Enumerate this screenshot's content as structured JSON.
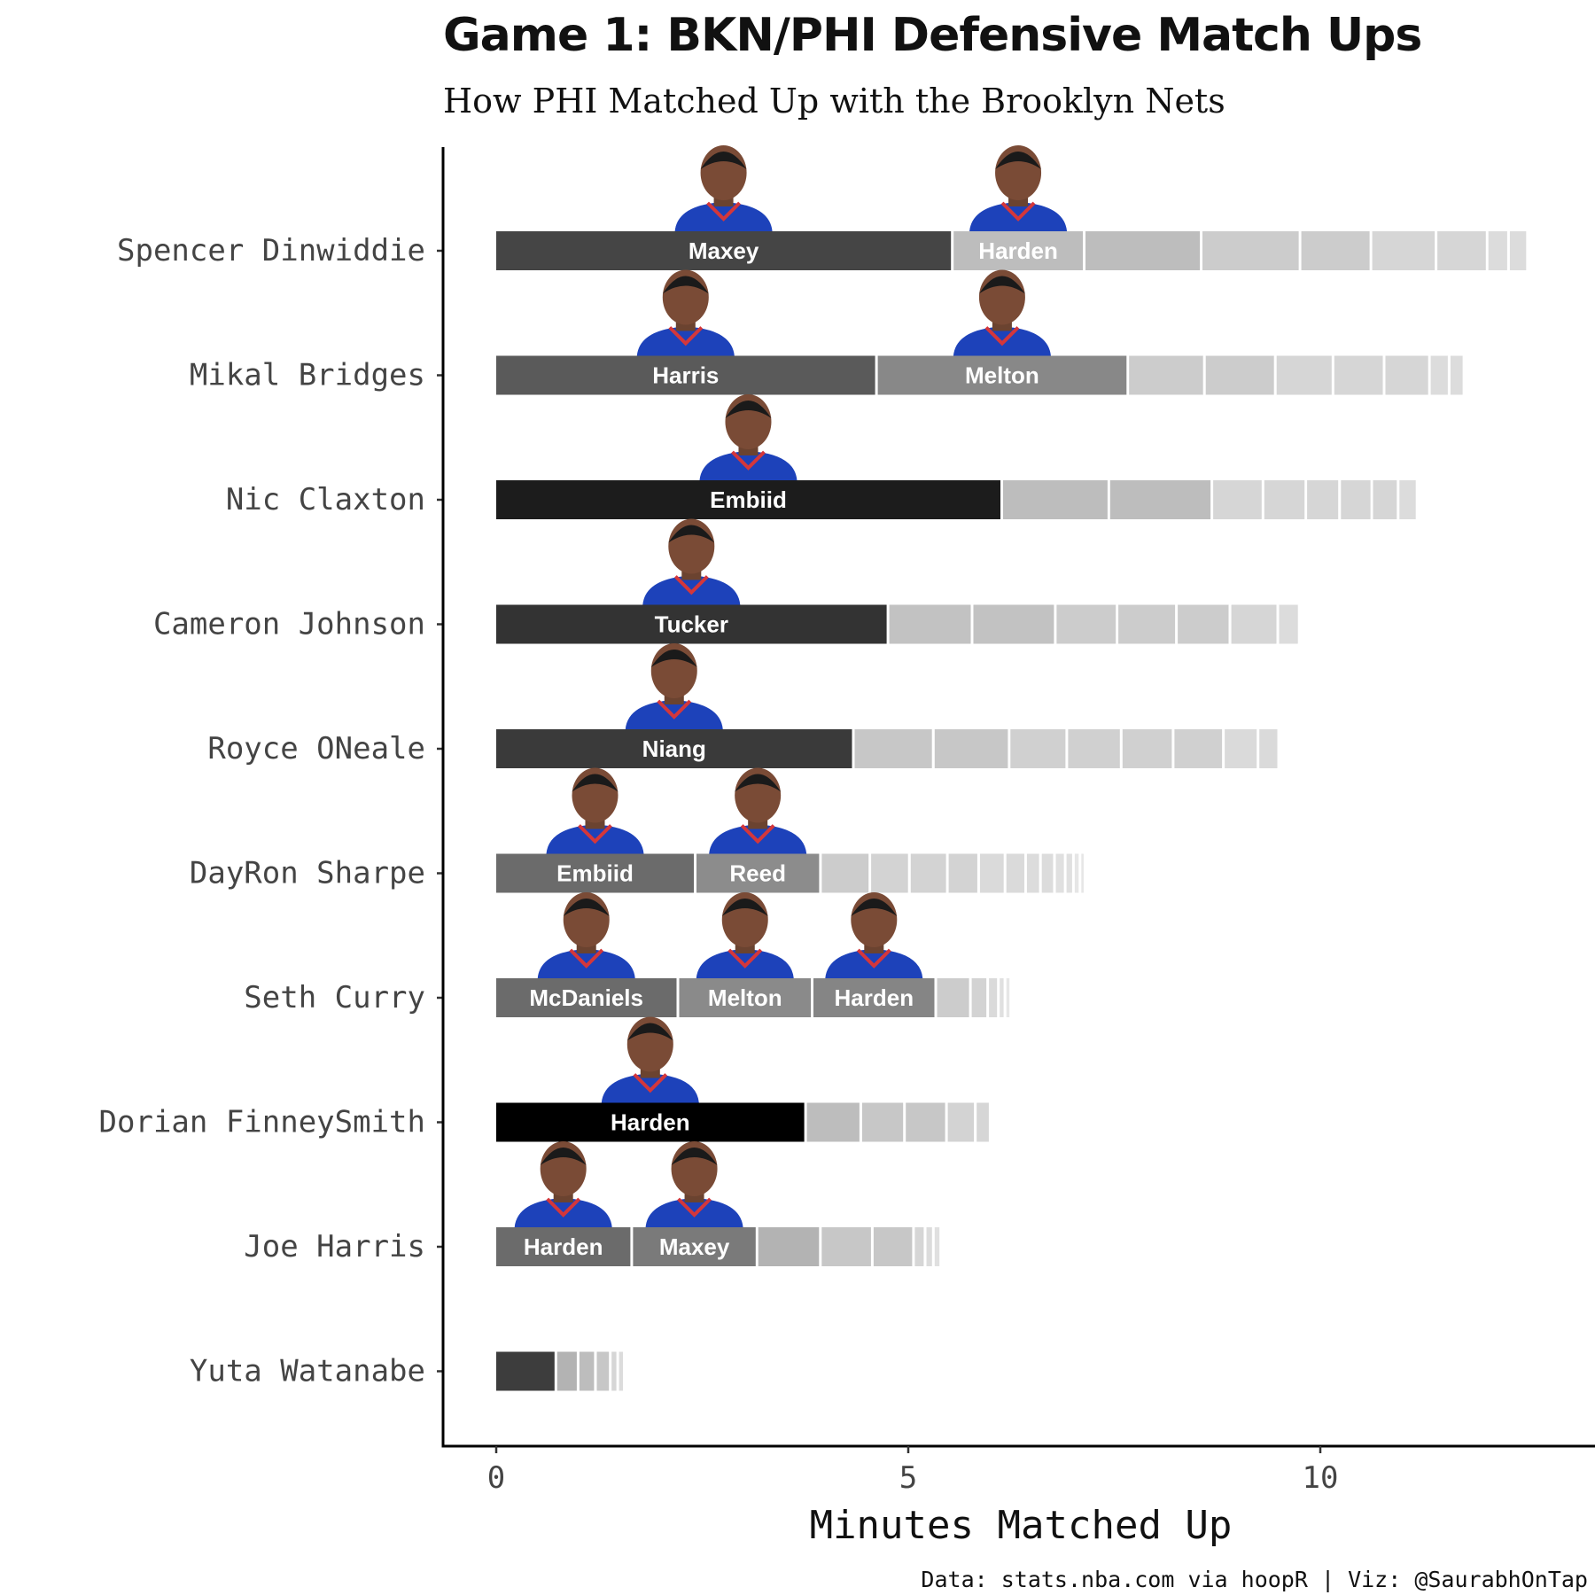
{
  "title": "Game 1: BKN/PHI Defensive Match Ups",
  "subtitle": "How PHI Matched Up with the Brooklyn Nets",
  "caption": "Data: stats.nba.com via hoopR | Viz: @SaurabhOnTap",
  "chart_data": {
    "type": "bar",
    "orientation": "horizontal",
    "stacked": true,
    "title": "Game 1: BKN/PHI Defensive Match Ups",
    "subtitle": "How PHI Matched Up with the Brooklyn Nets",
    "xlabel": "Minutes Matched Up",
    "ylabel": "",
    "xlim": [
      -0.65,
      13.3
    ],
    "xticks": [
      0,
      5,
      10
    ],
    "grid": false,
    "legend": "none",
    "categories": [
      "Spencer Dinwiddie",
      "Mikal Bridges",
      "Nic Claxton",
      "Cameron Johnson",
      "Royce ONeale",
      "DayRon Sharpe",
      "Seth Curry",
      "Dorian FinneySmith",
      "Joe Harris",
      "Yuta Watanabe"
    ],
    "rows": [
      {
        "player": "Spencer Dinwiddie",
        "segments": [
          {
            "defender": "Maxey",
            "minutes": 5.55,
            "color": "#454545",
            "label": true
          },
          {
            "defender": "Harden",
            "minutes": 1.6,
            "color": "#bdbdbd",
            "label": true
          },
          {
            "defender": "",
            "minutes": 1.42,
            "color": "#bdbdbd"
          },
          {
            "defender": "",
            "minutes": 1.2,
            "color": "#cccccc"
          },
          {
            "defender": "",
            "minutes": 0.86,
            "color": "#cccccc"
          },
          {
            "defender": "",
            "minutes": 0.79,
            "color": "#d6d6d6"
          },
          {
            "defender": "",
            "minutes": 0.62,
            "color": "#d6d6d6"
          },
          {
            "defender": "",
            "minutes": 0.26,
            "color": "#dcdcdc"
          },
          {
            "defender": "",
            "minutes": 0.23,
            "color": "#dcdcdc"
          }
        ]
      },
      {
        "player": "Mikal Bridges",
        "segments": [
          {
            "defender": "Harris",
            "minutes": 4.63,
            "color": "#5a5a5a",
            "label": true
          },
          {
            "defender": "Melton",
            "minutes": 3.05,
            "color": "#888888",
            "label": true
          },
          {
            "defender": "",
            "minutes": 0.93,
            "color": "#cccccc"
          },
          {
            "defender": "",
            "minutes": 0.86,
            "color": "#cccccc"
          },
          {
            "defender": "",
            "minutes": 0.7,
            "color": "#d6d6d6"
          },
          {
            "defender": "",
            "minutes": 0.62,
            "color": "#d6d6d6"
          },
          {
            "defender": "",
            "minutes": 0.55,
            "color": "#d6d6d6"
          },
          {
            "defender": "",
            "minutes": 0.24,
            "color": "#dcdcdc"
          },
          {
            "defender": "",
            "minutes": 0.18,
            "color": "#dcdcdc"
          }
        ]
      },
      {
        "player": "Nic Claxton",
        "segments": [
          {
            "defender": "Embiid",
            "minutes": 6.15,
            "color": "#1c1c1c",
            "label": true
          },
          {
            "defender": "",
            "minutes": 1.3,
            "color": "#bdbdbd"
          },
          {
            "defender": "",
            "minutes": 1.25,
            "color": "#bdbdbd"
          },
          {
            "defender": "",
            "minutes": 0.62,
            "color": "#d6d6d6"
          },
          {
            "defender": "",
            "minutes": 0.52,
            "color": "#d6d6d6"
          },
          {
            "defender": "",
            "minutes": 0.41,
            "color": "#d6d6d6"
          },
          {
            "defender": "",
            "minutes": 0.39,
            "color": "#d6d6d6"
          },
          {
            "defender": "",
            "minutes": 0.32,
            "color": "#d6d6d6"
          },
          {
            "defender": "",
            "minutes": 0.23,
            "color": "#dcdcdc"
          }
        ]
      },
      {
        "player": "Cameron Johnson",
        "segments": [
          {
            "defender": "Tucker",
            "minutes": 4.77,
            "color": "#333333",
            "label": true
          },
          {
            "defender": "",
            "minutes": 1.02,
            "color": "#c2c2c2"
          },
          {
            "defender": "",
            "minutes": 1.01,
            "color": "#c2c2c2"
          },
          {
            "defender": "",
            "minutes": 0.75,
            "color": "#cccccc"
          },
          {
            "defender": "",
            "minutes": 0.72,
            "color": "#cccccc"
          },
          {
            "defender": "",
            "minutes": 0.65,
            "color": "#cccccc"
          },
          {
            "defender": "",
            "minutes": 0.58,
            "color": "#d6d6d6"
          },
          {
            "defender": "",
            "minutes": 0.26,
            "color": "#dcdcdc"
          }
        ]
      },
      {
        "player": "Royce ONeale",
        "segments": [
          {
            "defender": "Niang",
            "minutes": 4.35,
            "color": "#3a3a3a",
            "label": true
          },
          {
            "defender": "",
            "minutes": 0.97,
            "color": "#c7c7c7"
          },
          {
            "defender": "",
            "minutes": 0.92,
            "color": "#c7c7c7"
          },
          {
            "defender": "",
            "minutes": 0.7,
            "color": "#d0d0d0"
          },
          {
            "defender": "",
            "minutes": 0.66,
            "color": "#d0d0d0"
          },
          {
            "defender": "",
            "minutes": 0.63,
            "color": "#d0d0d0"
          },
          {
            "defender": "",
            "minutes": 0.61,
            "color": "#d0d0d0"
          },
          {
            "defender": "",
            "minutes": 0.42,
            "color": "#dadada"
          },
          {
            "defender": "",
            "minutes": 0.25,
            "color": "#dadada"
          }
        ]
      },
      {
        "player": "DayRon Sharpe",
        "segments": [
          {
            "defender": "Embiid",
            "minutes": 2.43,
            "color": "#6b6b6b",
            "label": true
          },
          {
            "defender": "Reed",
            "minutes": 1.52,
            "color": "#8c8c8c",
            "label": true
          },
          {
            "defender": "",
            "minutes": 0.6,
            "color": "#cccccc"
          },
          {
            "defender": "",
            "minutes": 0.48,
            "color": "#d3d3d3"
          },
          {
            "defender": "",
            "minutes": 0.46,
            "color": "#d3d3d3"
          },
          {
            "defender": "",
            "minutes": 0.38,
            "color": "#d3d3d3"
          },
          {
            "defender": "",
            "minutes": 0.32,
            "color": "#dadada"
          },
          {
            "defender": "",
            "minutes": 0.25,
            "color": "#dadada"
          },
          {
            "defender": "",
            "minutes": 0.18,
            "color": "#dcdcdc"
          },
          {
            "defender": "",
            "minutes": 0.17,
            "color": "#dcdcdc"
          },
          {
            "defender": "",
            "minutes": 0.13,
            "color": "#e0e0e0"
          },
          {
            "defender": "",
            "minutes": 0.1,
            "color": "#e0e0e0"
          },
          {
            "defender": "",
            "minutes": 0.08,
            "color": "#e6e6e6"
          },
          {
            "defender": "",
            "minutes": 0.06,
            "color": "#e6e6e6"
          }
        ]
      },
      {
        "player": "Seth Curry",
        "segments": [
          {
            "defender": "McDaniels",
            "minutes": 2.22,
            "color": "#6b6b6b",
            "label": true
          },
          {
            "defender": "Melton",
            "minutes": 1.63,
            "color": "#8a8a8a",
            "label": true
          },
          {
            "defender": "Harden",
            "minutes": 1.5,
            "color": "#858585",
            "label": true
          },
          {
            "defender": "",
            "minutes": 0.42,
            "color": "#cccccc"
          },
          {
            "defender": "",
            "minutes": 0.21,
            "color": "#d3d3d3"
          },
          {
            "defender": "",
            "minutes": 0.13,
            "color": "#dadada"
          },
          {
            "defender": "",
            "minutes": 0.08,
            "color": "#e0e0e0"
          },
          {
            "defender": "",
            "minutes": 0.07,
            "color": "#e6e6e6"
          }
        ]
      },
      {
        "player": "Dorian FinneySmith",
        "segments": [
          {
            "defender": "Harden",
            "minutes": 3.77,
            "color": "#000000",
            "label": true
          },
          {
            "defender": "",
            "minutes": 0.67,
            "color": "#bdbdbd"
          },
          {
            "defender": "",
            "minutes": 0.53,
            "color": "#c7c7c7"
          },
          {
            "defender": "",
            "minutes": 0.51,
            "color": "#c7c7c7"
          },
          {
            "defender": "",
            "minutes": 0.35,
            "color": "#d3d3d3"
          },
          {
            "defender": "",
            "minutes": 0.18,
            "color": "#d6d6d6"
          }
        ]
      },
      {
        "player": "Joe Harris",
        "segments": [
          {
            "defender": "Harden",
            "minutes": 1.66,
            "color": "#6b6b6b",
            "label": true
          },
          {
            "defender": "Maxey",
            "minutes": 1.52,
            "color": "#7a7a7a",
            "label": true
          },
          {
            "defender": "",
            "minutes": 0.77,
            "color": "#b3b3b3"
          },
          {
            "defender": "",
            "minutes": 0.63,
            "color": "#c7c7c7"
          },
          {
            "defender": "",
            "minutes": 0.5,
            "color": "#c7c7c7"
          },
          {
            "defender": "",
            "minutes": 0.14,
            "color": "#d6d6d6"
          },
          {
            "defender": "",
            "minutes": 0.1,
            "color": "#dcdcdc"
          },
          {
            "defender": "",
            "minutes": 0.09,
            "color": "#e0e0e0"
          }
        ]
      },
      {
        "player": "Yuta Watanabe",
        "segments": [
          {
            "defender": "",
            "minutes": 0.74,
            "color": "#3d3d3d"
          },
          {
            "defender": "",
            "minutes": 0.27,
            "color": "#b3b3b3"
          },
          {
            "defender": "",
            "minutes": 0.21,
            "color": "#bdbdbd"
          },
          {
            "defender": "",
            "minutes": 0.18,
            "color": "#c7c7c7"
          },
          {
            "defender": "",
            "minutes": 0.09,
            "color": "#d6d6d6"
          },
          {
            "defender": "",
            "minutes": 0.08,
            "color": "#dcdcdc"
          }
        ]
      }
    ]
  }
}
